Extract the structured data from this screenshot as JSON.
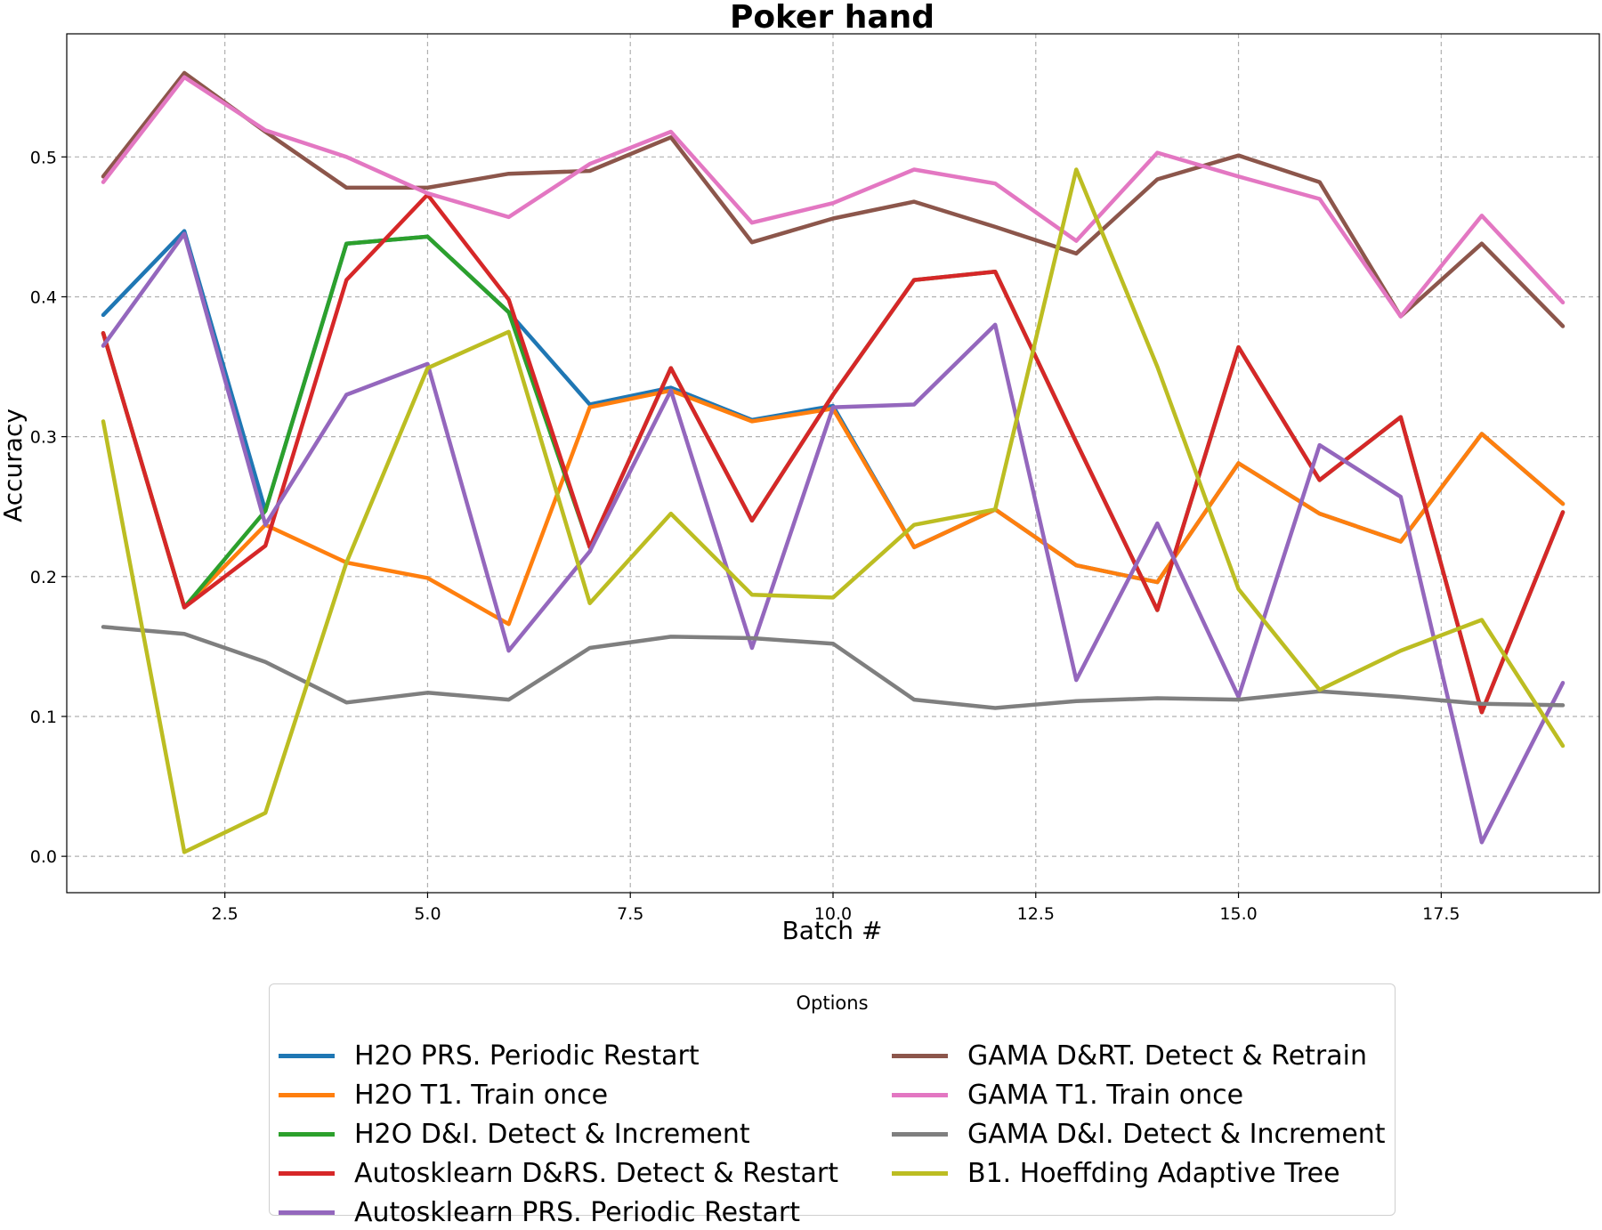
{
  "chart_data": {
    "type": "line",
    "title": "Poker hand",
    "xlabel": "Batch #",
    "ylabel": "Accuracy",
    "xlim": [
      0.55,
      19.45
    ],
    "ylim": [
      -0.026,
      0.588
    ],
    "x_ticks": [
      2.5,
      5.0,
      7.5,
      10.0,
      12.5,
      15.0,
      17.5
    ],
    "x_tick_labels": [
      "2.5",
      "5.0",
      "7.5",
      "10.0",
      "12.5",
      "15.0",
      "17.5"
    ],
    "y_ticks": [
      0.0,
      0.1,
      0.2,
      0.3,
      0.4,
      0.5
    ],
    "y_tick_labels": [
      "0.0",
      "0.1",
      "0.2",
      "0.3",
      "0.4",
      "0.5"
    ],
    "grid": true,
    "legend_title": "Options",
    "legend_placement": "below plot, two columns",
    "x": [
      1,
      2,
      3,
      4,
      5,
      6,
      7,
      8,
      9,
      10,
      11,
      12,
      13,
      14,
      15,
      16,
      17,
      18,
      19
    ],
    "series": [
      {
        "name": "H2O PRS. Periodic Restart",
        "color": "#1f77b4",
        "values": [
          0.387,
          0.447,
          0.247,
          0.438,
          0.443,
          0.389,
          0.323,
          0.335,
          0.312,
          0.322,
          0.221,
          0.248,
          0.208,
          0.196,
          0.281,
          0.245,
          0.225,
          0.302,
          0.252
        ]
      },
      {
        "name": "H2O T1. Train once",
        "color": "#ff7f0e",
        "values": [
          0.374,
          0.178,
          0.237,
          0.21,
          0.199,
          0.166,
          0.321,
          0.333,
          0.311,
          0.32,
          0.221,
          0.248,
          0.208,
          0.196,
          0.281,
          0.245,
          0.225,
          0.302,
          0.252
        ]
      },
      {
        "name": "H2O D&I. Detect & Increment",
        "color": "#2ca02c",
        "values": [
          0.374,
          0.178,
          0.247,
          0.438,
          0.443,
          0.389,
          0.221,
          0.349,
          0.24,
          0.33,
          0.412,
          0.418,
          0.296,
          0.176,
          0.364,
          0.269,
          0.314,
          0.103,
          0.246
        ]
      },
      {
        "name": "Autosklearn D&RS. Detect & Restart",
        "color": "#d62728",
        "values": [
          0.374,
          0.178,
          0.222,
          0.412,
          0.473,
          0.398,
          0.221,
          0.349,
          0.24,
          0.33,
          0.412,
          0.418,
          0.296,
          0.176,
          0.364,
          0.269,
          0.314,
          0.103,
          0.246
        ]
      },
      {
        "name": "Autosklearn PRS. Periodic Restart",
        "color": "#9467bd",
        "values": [
          0.365,
          0.445,
          0.237,
          0.33,
          0.352,
          0.147,
          0.218,
          0.333,
          0.149,
          0.321,
          0.323,
          0.38,
          0.126,
          0.238,
          0.114,
          0.294,
          0.257,
          0.01,
          0.124
        ]
      },
      {
        "name": "GAMA D&RT. Detect & Retrain",
        "color": "#8c564b",
        "values": [
          0.486,
          0.56,
          0.518,
          0.478,
          0.478,
          0.488,
          0.49,
          0.514,
          0.439,
          0.456,
          0.468,
          0.45,
          0.431,
          0.484,
          0.501,
          0.482,
          0.386,
          0.438,
          0.379
        ]
      },
      {
        "name": "GAMA T1. Train once",
        "color": "#e377c2",
        "values": [
          0.482,
          0.557,
          0.519,
          0.5,
          0.474,
          0.457,
          0.495,
          0.518,
          0.453,
          0.467,
          0.491,
          0.481,
          0.44,
          0.503,
          0.486,
          0.47,
          0.386,
          0.458,
          0.396
        ]
      },
      {
        "name": "GAMA D&I. Detect & Increment",
        "color": "#7f7f7f",
        "values": [
          0.164,
          0.159,
          0.139,
          0.11,
          0.117,
          0.112,
          0.149,
          0.157,
          0.156,
          0.152,
          0.112,
          0.106,
          0.111,
          0.113,
          0.112,
          0.118,
          0.114,
          0.109,
          0.108
        ]
      },
      {
        "name": "B1. Hoeffding Adaptive Tree",
        "color": "#bcbd22",
        "values": [
          0.311,
          0.003,
          0.031,
          0.21,
          0.349,
          0.375,
          0.181,
          0.245,
          0.187,
          0.185,
          0.237,
          0.248,
          0.491,
          0.35,
          0.191,
          0.119,
          0.147,
          0.169,
          0.079
        ]
      }
    ]
  }
}
